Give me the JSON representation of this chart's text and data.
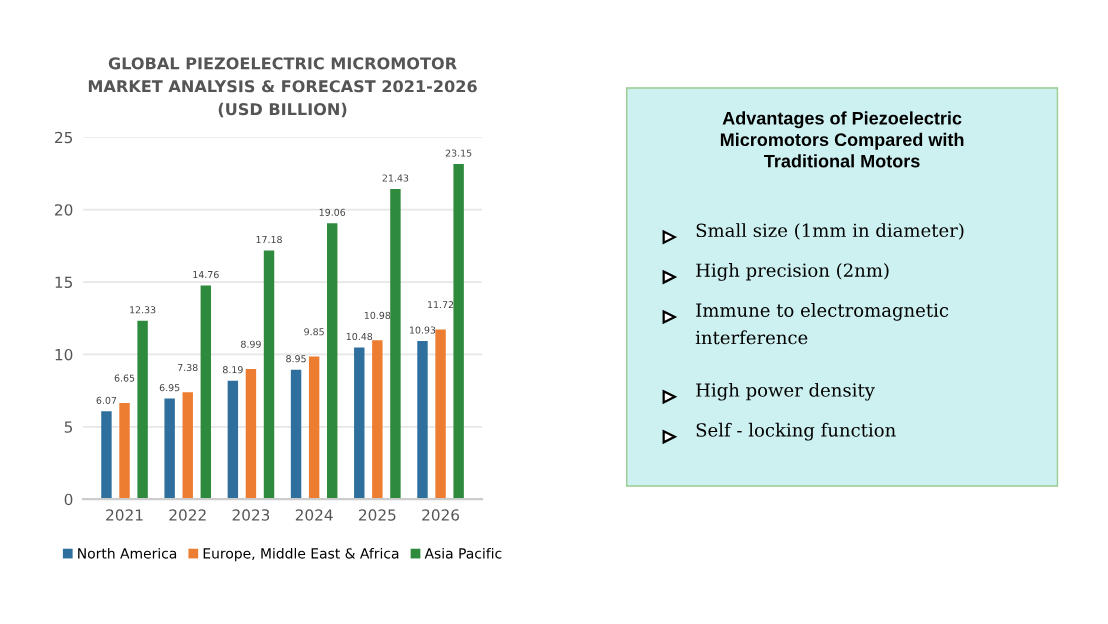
{
  "chart_data": [
    {
      "type": "bar",
      "title": "GLOBAL PIEZOELECTRIC MICROMOTOR\nMARKET ANALYSIS & FORECAST 2021-2026\n(USD BILLION)",
      "categories": [
        "2021",
        "2022",
        "2023",
        "2024",
        "2025",
        "2026"
      ],
      "series": [
        {
          "name": "North America",
          "color": "#2e6f9e",
          "values": [
            6.07,
            6.95,
            8.19,
            8.95,
            10.48,
            10.93
          ]
        },
        {
          "name": "Europe, Middle East & Africa",
          "color": "#ed7d31",
          "values": [
            6.65,
            7.38,
            8.99,
            9.85,
            10.98,
            11.72
          ]
        },
        {
          "name": "Asia Pacific",
          "color": "#2e8b3e",
          "values": [
            12.33,
            14.76,
            17.18,
            19.06,
            21.43,
            23.15
          ]
        }
      ],
      "ylim": [
        0,
        25
      ],
      "yticks": [
        0,
        5,
        10,
        15,
        20,
        25
      ],
      "grid": "y",
      "legend": "bottom",
      "data_labels": true
    },
    {
      "type": "other",
      "title": "Advantages of Piezoelectric\nMicromotors Compared with\nTraditional Motors",
      "annotations": [
        "Small size (1mm in diameter)",
        "High precision (2nm)",
        "Immune to electromagnetic\ninterference",
        "High power density",
        "Self - locking function"
      ]
    }
  ]
}
